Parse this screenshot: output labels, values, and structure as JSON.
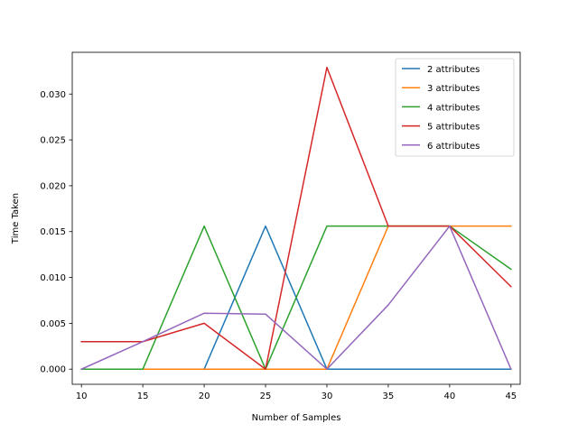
{
  "chart_data": {
    "type": "line",
    "title": "",
    "xlabel": "Number of Samples",
    "ylabel": "Time Taken",
    "x": [
      10,
      15,
      20,
      25,
      30,
      35,
      40,
      45
    ],
    "xlim": [
      9.25,
      45.75
    ],
    "ylim": [
      -0.00165,
      0.03455
    ],
    "xticks": [
      10,
      15,
      20,
      25,
      30,
      35,
      40,
      45
    ],
    "yticks": [
      0.0,
      0.005,
      0.01,
      0.015,
      0.02,
      0.025,
      0.03
    ],
    "ytick_labels": [
      "0.000",
      "0.005",
      "0.010",
      "0.015",
      "0.020",
      "0.025",
      "0.030"
    ],
    "grid": false,
    "legend_position": "top-right",
    "series": [
      {
        "name": "2 attributes",
        "color": "#1f77b4",
        "values": [
          0,
          0,
          0,
          0.0156,
          0,
          0,
          0,
          0
        ]
      },
      {
        "name": "3 attributes",
        "color": "#ff7f0e",
        "values": [
          0,
          0,
          0,
          0,
          0,
          0.0156,
          0.0156,
          0.0156
        ]
      },
      {
        "name": "4 attributes",
        "color": "#2ca02c",
        "values": [
          0,
          0,
          0.0156,
          0,
          0.0156,
          0.0156,
          0.0156,
          0.0109
        ]
      },
      {
        "name": "5 attributes",
        "color": "#d62728",
        "values": [
          0.003,
          0.003,
          0.005,
          0,
          0.0329,
          0.0156,
          0.0156,
          0.009
        ]
      },
      {
        "name": "6 attributes",
        "color": "#9467bd",
        "values": [
          0,
          0.003,
          0.0061,
          0.006,
          0,
          0.007,
          0.0156,
          0
        ]
      }
    ]
  }
}
